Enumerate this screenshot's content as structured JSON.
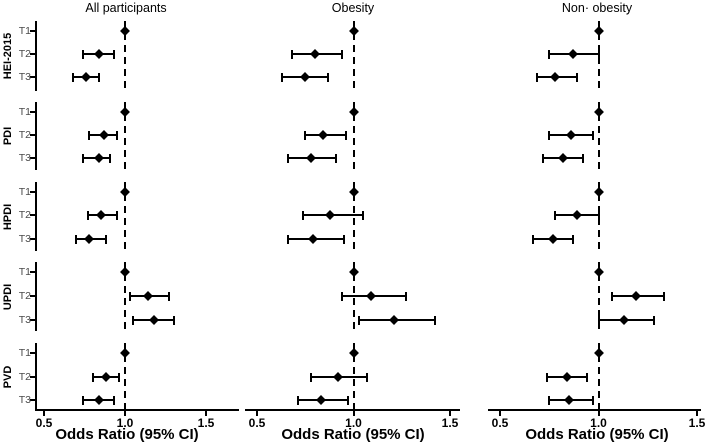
{
  "chart_data": {
    "type": "forest",
    "xlabel": "Odds Ratio (95% CI)",
    "x_ticks": [
      0.5,
      1.0,
      1.5
    ],
    "x_tick_labels": [
      "0.5",
      "1.0",
      "1.5"
    ],
    "xlim": [
      0.45,
      1.55
    ],
    "reference_value": 1.0,
    "grid": false,
    "groups": [
      "HEI-2015",
      "PDI",
      "HPDI",
      "UPDI",
      "PVD"
    ],
    "tertiles": [
      "T1",
      "T2",
      "T3"
    ],
    "panels": [
      {
        "title": "All participants",
        "series": [
          {
            "group": "HEI-2015",
            "rows": [
              {
                "tertile": "T1",
                "or": 1.0,
                "low": 1.0,
                "high": 1.0,
                "reference": true
              },
              {
                "tertile": "T2",
                "or": 0.84,
                "low": 0.74,
                "high": 0.93
              },
              {
                "tertile": "T3",
                "or": 0.76,
                "low": 0.68,
                "high": 0.84
              }
            ]
          },
          {
            "group": "PDI",
            "rows": [
              {
                "tertile": "T1",
                "or": 1.0,
                "low": 1.0,
                "high": 1.0,
                "reference": true
              },
              {
                "tertile": "T2",
                "or": 0.87,
                "low": 0.78,
                "high": 0.95
              },
              {
                "tertile": "T3",
                "or": 0.84,
                "low": 0.74,
                "high": 0.91
              }
            ]
          },
          {
            "group": "HPDI",
            "rows": [
              {
                "tertile": "T1",
                "or": 1.0,
                "low": 1.0,
                "high": 1.0,
                "reference": true
              },
              {
                "tertile": "T2",
                "or": 0.85,
                "low": 0.77,
                "high": 0.95
              },
              {
                "tertile": "T3",
                "or": 0.78,
                "low": 0.7,
                "high": 0.88
              }
            ]
          },
          {
            "group": "UPDI",
            "rows": [
              {
                "tertile": "T1",
                "or": 1.0,
                "low": 1.0,
                "high": 1.0,
                "reference": true
              },
              {
                "tertile": "T2",
                "or": 1.14,
                "low": 1.03,
                "high": 1.27
              },
              {
                "tertile": "T3",
                "or": 1.18,
                "low": 1.05,
                "high": 1.3
              }
            ]
          },
          {
            "group": "PVD",
            "rows": [
              {
                "tertile": "T1",
                "or": 1.0,
                "low": 1.0,
                "high": 1.0,
                "reference": true
              },
              {
                "tertile": "T2",
                "or": 0.88,
                "low": 0.8,
                "high": 0.96
              },
              {
                "tertile": "T3",
                "or": 0.84,
                "low": 0.74,
                "high": 0.93
              }
            ]
          }
        ]
      },
      {
        "title": "Obesity",
        "series": [
          {
            "group": "HEI-2015",
            "rows": [
              {
                "tertile": "T1",
                "or": 1.0,
                "low": 1.0,
                "high": 1.0,
                "reference": true
              },
              {
                "tertile": "T2",
                "or": 0.8,
                "low": 0.68,
                "high": 0.94
              },
              {
                "tertile": "T3",
                "or": 0.75,
                "low": 0.63,
                "high": 0.87
              }
            ]
          },
          {
            "group": "PDI",
            "rows": [
              {
                "tertile": "T1",
                "or": 1.0,
                "low": 1.0,
                "high": 1.0,
                "reference": true
              },
              {
                "tertile": "T2",
                "or": 0.84,
                "low": 0.75,
                "high": 0.96
              },
              {
                "tertile": "T3",
                "or": 0.78,
                "low": 0.66,
                "high": 0.91
              }
            ]
          },
          {
            "group": "HPDI",
            "rows": [
              {
                "tertile": "T1",
                "or": 1.0,
                "low": 1.0,
                "high": 1.0,
                "reference": true
              },
              {
                "tertile": "T2",
                "or": 0.88,
                "low": 0.74,
                "high": 1.05
              },
              {
                "tertile": "T3",
                "or": 0.79,
                "low": 0.66,
                "high": 0.95
              }
            ]
          },
          {
            "group": "UPDI",
            "rows": [
              {
                "tertile": "T1",
                "or": 1.0,
                "low": 1.0,
                "high": 1.0,
                "reference": true
              },
              {
                "tertile": "T2",
                "or": 1.09,
                "low": 0.94,
                "high": 1.27
              },
              {
                "tertile": "T3",
                "or": 1.21,
                "low": 1.03,
                "high": 1.42
              }
            ]
          },
          {
            "group": "PVD",
            "rows": [
              {
                "tertile": "T1",
                "or": 1.0,
                "low": 1.0,
                "high": 1.0,
                "reference": true
              },
              {
                "tertile": "T2",
                "or": 0.92,
                "low": 0.78,
                "high": 1.07
              },
              {
                "tertile": "T3",
                "or": 0.83,
                "low": 0.71,
                "high": 0.97
              }
            ]
          }
        ]
      },
      {
        "title": "Non· obesity",
        "series": [
          {
            "group": "HEI-2015",
            "rows": [
              {
                "tertile": "T1",
                "or": 1.0,
                "low": 1.0,
                "high": 1.0,
                "reference": true
              },
              {
                "tertile": "T2",
                "or": 0.87,
                "low": 0.75,
                "high": 1.0
              },
              {
                "tertile": "T3",
                "or": 0.78,
                "low": 0.69,
                "high": 0.89
              }
            ]
          },
          {
            "group": "PDI",
            "rows": [
              {
                "tertile": "T1",
                "or": 1.0,
                "low": 1.0,
                "high": 1.0,
                "reference": true
              },
              {
                "tertile": "T2",
                "or": 0.86,
                "low": 0.75,
                "high": 0.97
              },
              {
                "tertile": "T3",
                "or": 0.82,
                "low": 0.72,
                "high": 0.92
              }
            ]
          },
          {
            "group": "HPDI",
            "rows": [
              {
                "tertile": "T1",
                "or": 1.0,
                "low": 1.0,
                "high": 1.0,
                "reference": true
              },
              {
                "tertile": "T2",
                "or": 0.89,
                "low": 0.78,
                "high": 1.0
              },
              {
                "tertile": "T3",
                "or": 0.77,
                "low": 0.67,
                "high": 0.87
              }
            ]
          },
          {
            "group": "UPDI",
            "rows": [
              {
                "tertile": "T1",
                "or": 1.0,
                "low": 1.0,
                "high": 1.0,
                "reference": true
              },
              {
                "tertile": "T2",
                "or": 1.19,
                "low": 1.07,
                "high": 1.33
              },
              {
                "tertile": "T3",
                "or": 1.13,
                "low": 1.0,
                "high": 1.28
              }
            ]
          },
          {
            "group": "PVD",
            "rows": [
              {
                "tertile": "T1",
                "or": 1.0,
                "low": 1.0,
                "high": 1.0,
                "reference": true
              },
              {
                "tertile": "T2",
                "or": 0.84,
                "low": 0.74,
                "high": 0.94
              },
              {
                "tertile": "T3",
                "or": 0.85,
                "low": 0.75,
                "high": 0.97
              }
            ]
          }
        ]
      }
    ]
  }
}
